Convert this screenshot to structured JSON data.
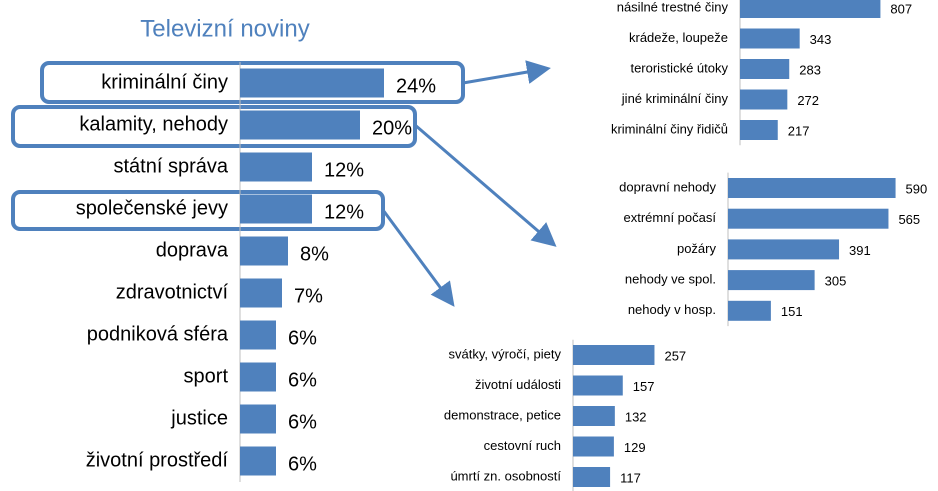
{
  "chart_data": [
    {
      "type": "bar",
      "orientation": "horizontal",
      "title": "Televizní noviny",
      "color": "#4f81bd",
      "categories": [
        "kriminální činy",
        "kalamity, nehody",
        "státní správa",
        "společenské jevy",
        "doprava",
        "zdravotnictví",
        "podniková sféra",
        "sport",
        "justice",
        "životní prostředí"
      ],
      "values": [
        24,
        20,
        12,
        12,
        8,
        7,
        6,
        6,
        6,
        6
      ],
      "value_labels": [
        "24%",
        "20%",
        "12%",
        "12%",
        "8%",
        "7%",
        "6%",
        "6%",
        "6%",
        "6%"
      ]
    },
    {
      "type": "bar",
      "orientation": "horizontal",
      "color": "#4f81bd",
      "categories": [
        "násilné trestné činy",
        "krádeže, loupeže",
        "teroristické útoky",
        "jiné kriminální činy",
        "kriminální činy řidičů"
      ],
      "values": [
        807,
        343,
        283,
        272,
        217
      ]
    },
    {
      "type": "bar",
      "orientation": "horizontal",
      "color": "#4f81bd",
      "categories": [
        "dopravní nehody",
        "extrémní počasí",
        "požáry",
        "nehody ve spol.",
        "nehody v hosp."
      ],
      "values": [
        590,
        565,
        391,
        305,
        151
      ]
    },
    {
      "type": "bar",
      "orientation": "horizontal",
      "color": "#4f81bd",
      "categories": [
        "svátky, výročí, piety",
        "životní události",
        "demonstrace, petice",
        "cestovní ruch",
        "úmrtí zn. osobností"
      ],
      "values": [
        257,
        157,
        132,
        129,
        117
      ]
    }
  ]
}
